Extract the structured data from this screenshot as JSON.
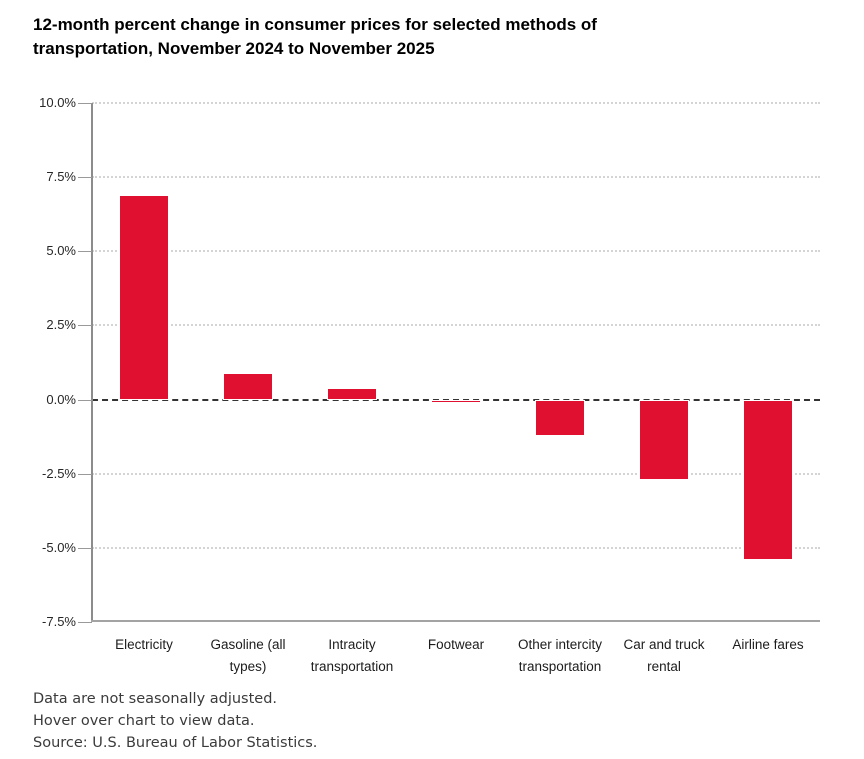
{
  "chart_data": {
    "type": "bar",
    "title": "12-month percent change in consumer prices for selected methods of transportation, November 2024 to November 2025",
    "categories": [
      "Electricity",
      "Gasoline (all types)",
      "Intracity transportation",
      "Footwear",
      "Other intercity transportation",
      "Car and truck rental",
      "Airline fares"
    ],
    "values": [
      6.9,
      0.9,
      0.4,
      -0.1,
      -1.2,
      -2.7,
      -5.4
    ],
    "unit": "%",
    "xlabel": "",
    "ylabel": "",
    "ylim": [
      -7.5,
      10.0
    ],
    "yticks": [
      10.0,
      7.5,
      5.0,
      2.5,
      0.0,
      -2.5,
      -5.0,
      -7.5
    ],
    "ytick_labels": [
      "10.0%",
      "7.5%",
      "5.0%",
      "2.5%",
      "0.0%",
      "-2.5%",
      "-5.0%",
      "-7.5%"
    ],
    "grid": "horizontal-dotted",
    "zero_line": "dashed",
    "legend": "none",
    "bar_color": "#e01030"
  },
  "footer": {
    "note1": "Data are not seasonally adjusted.",
    "note2": "Hover over chart to view data.",
    "source": "Source: U.S. Bureau of Labor Statistics."
  },
  "colors": {
    "bar": "#e01030",
    "axis_y": "#8c8c8c",
    "axis_x": "#a3a3a3",
    "gridline": "#d4d4d4",
    "zero_line": "#333333",
    "title_text": "#000000",
    "tick_text": "#262626",
    "category_text": "#1c1c1c",
    "footer_text": "#3b3b3b",
    "background": "#ffffff"
  }
}
